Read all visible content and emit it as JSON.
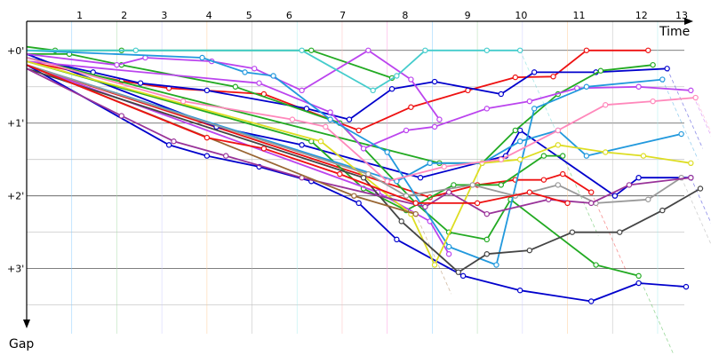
{
  "chart_data": {
    "type": "line",
    "xlabel": "Time",
    "ylabel": "Gap",
    "x_ticks": [
      "1",
      "2",
      "3",
      "4",
      "5",
      "6",
      "7",
      "8",
      "9",
      "10",
      "11",
      "12",
      "13"
    ],
    "y_ticks": [
      "+0'",
      "+1'",
      "+2'",
      "+3'"
    ],
    "xlim": [
      0.2,
      14.4
    ],
    "ylim": [
      -0.4,
      3.7
    ],
    "grid": true,
    "legend": "none",
    "series": [
      {
        "color": "#ee1111",
        "points": [
          [
            0.2,
            0.2
          ],
          [
            8.7,
            2.02
          ],
          [
            9.7,
            1.85
          ],
          [
            10.5,
            1.78
          ],
          [
            11.1,
            1.78
          ],
          [
            11.5,
            1.7
          ],
          [
            12.1,
            1.95
          ]
        ]
      },
      {
        "color": "#ee1111",
        "points": [
          [
            0.2,
            0.15
          ],
          [
            2.2,
            0.42
          ],
          [
            3.2,
            0.52
          ],
          [
            5.2,
            0.6
          ],
          [
            7.2,
            1.1
          ],
          [
            8.3,
            0.78
          ],
          [
            9.5,
            0.55
          ],
          [
            10.5,
            0.37
          ],
          [
            11.3,
            0.36
          ],
          [
            12.0,
            0.0
          ],
          [
            13.3,
            0.0
          ]
        ]
      },
      {
        "color": "#0000cc",
        "points": [
          [
            0.2,
            0.1
          ],
          [
            1.6,
            0.3
          ],
          [
            2.6,
            0.45
          ],
          [
            4.0,
            0.55
          ],
          [
            6.1,
            0.8
          ],
          [
            7.0,
            0.95
          ],
          [
            7.9,
            0.53
          ],
          [
            8.8,
            0.43
          ],
          [
            10.2,
            0.6
          ],
          [
            10.9,
            0.3
          ],
          [
            12.2,
            0.3
          ],
          [
            13.7,
            0.25
          ]
        ]
      },
      {
        "color": "#0000cc",
        "points": [
          [
            0.2,
            0.2
          ],
          [
            3.2,
            1.3
          ],
          [
            4.0,
            1.45
          ],
          [
            5.1,
            1.6
          ],
          [
            6.2,
            1.8
          ],
          [
            7.2,
            2.1
          ],
          [
            8.0,
            2.6
          ],
          [
            9.4,
            3.1
          ],
          [
            10.6,
            3.3
          ],
          [
            12.1,
            3.45
          ],
          [
            13.1,
            3.2
          ],
          [
            14.1,
            3.25
          ]
        ]
      },
      {
        "color": "#0000cc",
        "points": [
          [
            0.2,
            0.05
          ],
          [
            4.2,
            1.05
          ],
          [
            6.0,
            1.3
          ],
          [
            8.5,
            1.75
          ],
          [
            10.3,
            1.45
          ],
          [
            10.6,
            1.1
          ],
          [
            12.6,
            2.0
          ],
          [
            13.1,
            1.75
          ],
          [
            14.2,
            1.75
          ]
        ]
      },
      {
        "color": "#22aa22",
        "points": [
          [
            0.2,
            -0.05
          ],
          [
            0.8,
            0.0
          ],
          [
            2.2,
            0.0
          ],
          [
            6.2,
            0.0
          ],
          [
            7.9,
            0.38
          ]
        ]
      },
      {
        "color": "#22aa22",
        "points": [
          [
            0.2,
            0.05
          ],
          [
            1.1,
            0.05
          ],
          [
            2.2,
            0.2
          ],
          [
            4.6,
            0.5
          ],
          [
            6.8,
            1.0
          ],
          [
            8.4,
            2.1
          ],
          [
            9.1,
            2.5
          ],
          [
            9.9,
            2.6
          ],
          [
            10.4,
            2.05
          ],
          [
            12.2,
            2.95
          ],
          [
            13.1,
            3.1
          ]
        ]
      },
      {
        "color": "#22aa22",
        "points": [
          [
            0.2,
            0.1
          ],
          [
            8.9,
            1.55
          ],
          [
            9.8,
            1.55
          ],
          [
            10.5,
            1.1
          ],
          [
            11.4,
            0.6
          ],
          [
            12.3,
            0.28
          ],
          [
            13.4,
            0.2
          ]
        ]
      },
      {
        "color": "#22aa22",
        "points": [
          [
            0.2,
            0.15
          ],
          [
            6.2,
            1.25
          ],
          [
            7.3,
            1.9
          ],
          [
            8.2,
            2.2
          ],
          [
            9.2,
            1.85
          ],
          [
            10.2,
            1.85
          ],
          [
            11.1,
            1.45
          ],
          [
            11.5,
            1.45
          ]
        ]
      },
      {
        "color": "#bb44ee",
        "points": [
          [
            0.2,
            0.05
          ],
          [
            2.1,
            0.2
          ],
          [
            2.7,
            0.1
          ],
          [
            4.1,
            0.15
          ],
          [
            5.0,
            0.25
          ],
          [
            6.0,
            0.55
          ],
          [
            7.4,
            0.0
          ],
          [
            8.3,
            0.4
          ],
          [
            8.9,
            0.95
          ]
        ]
      },
      {
        "color": "#bb44ee",
        "points": [
          [
            0.2,
            0.15
          ],
          [
            5.1,
            0.45
          ],
          [
            6.6,
            0.85
          ],
          [
            7.3,
            1.35
          ],
          [
            8.2,
            1.1
          ],
          [
            8.8,
            1.05
          ],
          [
            9.9,
            0.8
          ],
          [
            10.8,
            0.7
          ],
          [
            11.8,
            0.52
          ],
          [
            13.1,
            0.5
          ],
          [
            14.2,
            0.55
          ]
        ]
      },
      {
        "color": "#bb44ee",
        "points": [
          [
            0.2,
            0.2
          ],
          [
            7.6,
            1.95
          ],
          [
            8.7,
            2.35
          ],
          [
            9.1,
            2.8
          ]
        ]
      },
      {
        "color": "#2299dd",
        "points": [
          [
            0.2,
            0.0
          ],
          [
            3.9,
            0.1
          ],
          [
            4.8,
            0.3
          ],
          [
            5.4,
            0.35
          ],
          [
            6.6,
            0.95
          ],
          [
            7.8,
            1.4
          ],
          [
            9.1,
            2.7
          ],
          [
            10.1,
            2.95
          ],
          [
            10.9,
            0.8
          ],
          [
            12.0,
            0.5
          ],
          [
            13.6,
            0.4
          ]
        ]
      },
      {
        "color": "#2299dd",
        "points": [
          [
            0.2,
            0.2
          ],
          [
            8.0,
            1.8
          ],
          [
            8.7,
            1.55
          ],
          [
            9.8,
            1.55
          ],
          [
            10.6,
            1.25
          ],
          [
            11.4,
            1.1
          ],
          [
            12.0,
            1.45
          ],
          [
            14.0,
            1.15
          ]
        ]
      },
      {
        "color": "#44cccc",
        "points": [
          [
            0.2,
            0.0
          ],
          [
            2.5,
            0.0
          ],
          [
            6.0,
            0.0
          ],
          [
            7.5,
            0.55
          ],
          [
            8.0,
            0.35
          ],
          [
            8.6,
            0.0
          ],
          [
            9.9,
            0.0
          ],
          [
            10.6,
            0.0
          ]
        ]
      },
      {
        "color": "#dddd22",
        "points": [
          [
            0.2,
            0.15
          ],
          [
            6.4,
            1.25
          ],
          [
            8.3,
            2.25
          ],
          [
            8.8,
            2.95
          ],
          [
            9.8,
            1.55
          ],
          [
            10.6,
            1.5
          ],
          [
            11.4,
            1.3
          ],
          [
            12.4,
            1.4
          ],
          [
            13.2,
            1.45
          ],
          [
            14.2,
            1.55
          ]
        ]
      },
      {
        "color": "#ff88bb",
        "points": [
          [
            0.2,
            0.1
          ],
          [
            3.5,
            0.7
          ],
          [
            5.8,
            0.95
          ],
          [
            6.5,
            1.05
          ],
          [
            7.8,
            1.8
          ],
          [
            9.0,
            1.6
          ],
          [
            10.2,
            1.5
          ],
          [
            11.4,
            1.1
          ],
          [
            12.4,
            0.75
          ],
          [
            13.4,
            0.7
          ],
          [
            14.3,
            0.65
          ]
        ]
      },
      {
        "color": "#444444",
        "points": [
          [
            0.2,
            0.25
          ],
          [
            7.3,
            1.75
          ],
          [
            8.1,
            2.35
          ],
          [
            9.3,
            3.05
          ],
          [
            9.9,
            2.8
          ],
          [
            10.8,
            2.75
          ],
          [
            11.7,
            2.5
          ],
          [
            12.7,
            2.5
          ],
          [
            13.6,
            2.2
          ],
          [
            14.4,
            1.9
          ]
        ]
      },
      {
        "color": "#999999",
        "points": [
          [
            0.2,
            0.2
          ],
          [
            7.4,
            1.7
          ],
          [
            8.2,
            2.0
          ],
          [
            9.6,
            1.85
          ],
          [
            10.5,
            2.0
          ],
          [
            11.4,
            1.85
          ],
          [
            12.2,
            2.1
          ],
          [
            13.3,
            2.05
          ],
          [
            14.0,
            1.75
          ]
        ]
      },
      {
        "color": "#993399",
        "points": [
          [
            0.2,
            0.25
          ],
          [
            2.2,
            0.9
          ],
          [
            3.3,
            1.25
          ],
          [
            4.4,
            1.45
          ],
          [
            6.0,
            1.75
          ],
          [
            8.6,
            2.15
          ],
          [
            9.1,
            1.95
          ],
          [
            9.9,
            2.25
          ],
          [
            11.2,
            2.05
          ],
          [
            12.1,
            2.1
          ],
          [
            12.9,
            1.85
          ],
          [
            14.2,
            1.75
          ]
        ]
      },
      {
        "color": "#996633",
        "points": [
          [
            0.2,
            0.2
          ],
          [
            7.1,
            2.0
          ],
          [
            8.4,
            2.25
          ]
        ]
      },
      {
        "color": "#ee1111",
        "points": [
          [
            0.2,
            0.2
          ],
          [
            4.0,
            1.2
          ],
          [
            5.2,
            1.35
          ],
          [
            6.8,
            1.7
          ],
          [
            8.4,
            2.1
          ],
          [
            9.7,
            2.1
          ],
          [
            10.8,
            1.95
          ],
          [
            11.6,
            2.1
          ]
        ]
      }
    ]
  }
}
